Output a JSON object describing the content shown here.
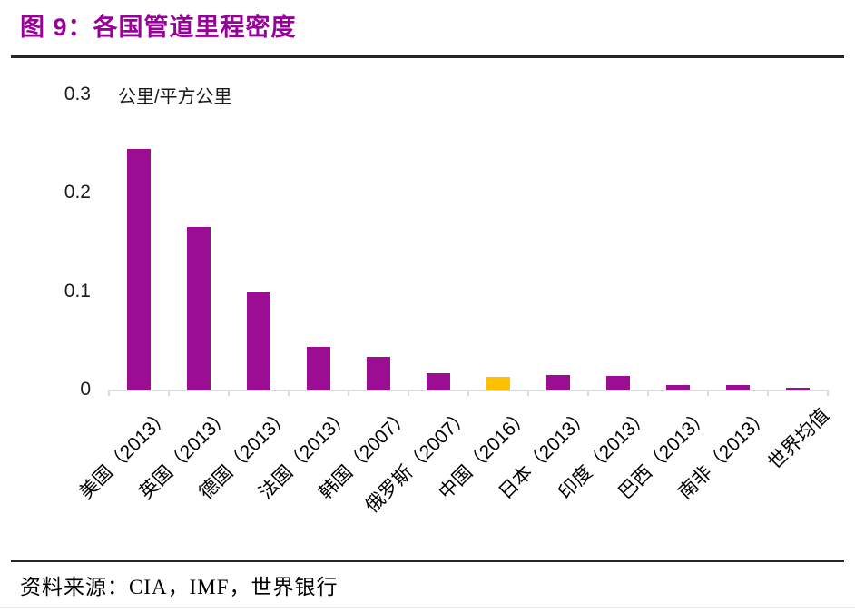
{
  "header": {
    "title": "图 9：各国管道里程密度"
  },
  "footer": {
    "source": "资料来源：CIA，IMF，世界银行"
  },
  "colors": {
    "title_purple": "#990099",
    "bar_purple": "#9b0d92",
    "bar_highlight_yellow": "#ffc000",
    "axis_gray": "#d9d9d9",
    "rule_dark": "#262626",
    "rule_light": "#ececec"
  },
  "chart_data": {
    "type": "bar",
    "title": "图 9：各国管道里程密度",
    "unit_label": "公里/平方公里",
    "xlabel": "",
    "ylabel": "公里/平方公里",
    "ylim": [
      0,
      0.3
    ],
    "yticks": [
      0,
      0.1,
      0.2,
      0.3
    ],
    "ytick_labels": [
      "0",
      "0.1",
      "0.2",
      "0.3"
    ],
    "grid": "off",
    "legend": "none",
    "categories": [
      "美国（2013）",
      "英国（2013）",
      "德国（2013）",
      "法国（2013）",
      "韩国（2007）",
      "俄罗斯（2007）",
      "中国（2016）",
      "日本（2013）",
      "印度（2013）",
      "巴西（2013）",
      "南非（2013）",
      "世界均值"
    ],
    "values": [
      0.245,
      0.165,
      0.099,
      0.043,
      0.033,
      0.017,
      0.013,
      0.015,
      0.014,
      0.005,
      0.005,
      0.002
    ],
    "highlight_index": 6,
    "highlight_color": "#ffc000",
    "bar_color": "#9b0d92"
  }
}
